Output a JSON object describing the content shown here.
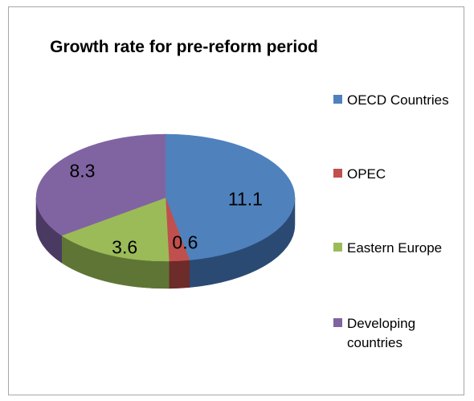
{
  "chart_data": {
    "type": "pie",
    "title": "Growth rate for pre-reform period",
    "categories": [
      "OECD Countries",
      "OPEC",
      "Eastern Europe",
      "Developing countries"
    ],
    "values": [
      11.1,
      0.6,
      3.6,
      8.3
    ],
    "data_labels": [
      "11.1",
      "0.6",
      "3.6",
      "8.3"
    ],
    "colors": [
      "#4f81bd",
      "#c0504d",
      "#9bbb59",
      "#8064a2"
    ],
    "side_colors": [
      "#2b4a73",
      "#6d2b29",
      "#5f7535",
      "#4a3a62"
    ],
    "legend_position": "right",
    "style": "3d-pie"
  }
}
